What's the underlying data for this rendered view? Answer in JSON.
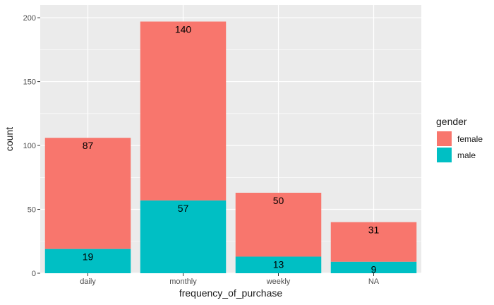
{
  "chart_data": {
    "type": "bar",
    "stacked": true,
    "categories": [
      "daily",
      "monthly",
      "weekly",
      "NA"
    ],
    "series": [
      {
        "name": "male",
        "values": [
          19,
          57,
          13,
          9
        ],
        "color": "#00BFC4"
      },
      {
        "name": "female",
        "values": [
          87,
          140,
          50,
          31
        ],
        "color": "#F8766D"
      }
    ],
    "data_labels": {
      "male": [
        "19",
        "57",
        "13",
        "9"
      ],
      "female": [
        "87",
        "140",
        "50",
        "31"
      ]
    },
    "xlabel": "frequency_of_purchase",
    "ylabel": "count",
    "ylim": [
      0,
      210
    ],
    "yticks": [
      0,
      50,
      100,
      150,
      200
    ],
    "grid": true,
    "panel_background": "#EBEBEB",
    "grid_color": "#FFFFFF",
    "legend": {
      "title": "gender",
      "placement": "right",
      "entries": [
        {
          "label": "female",
          "color": "#F8766D"
        },
        {
          "label": "male",
          "color": "#00BFC4"
        }
      ]
    }
  }
}
